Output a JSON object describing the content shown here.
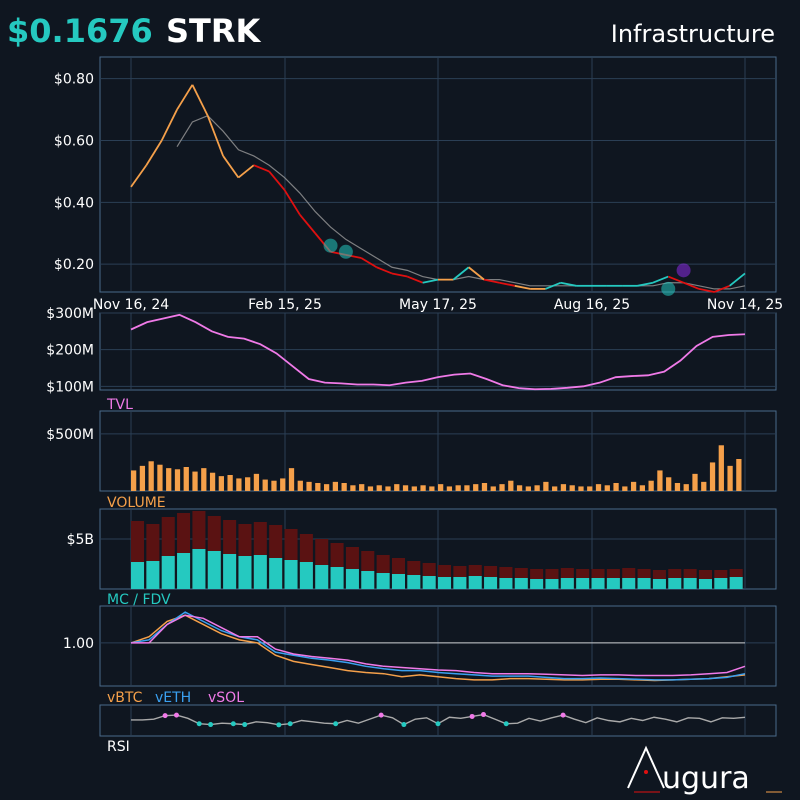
{
  "header": {
    "price": "$0.1676",
    "ticker": "STRK",
    "category": "Infrastructure"
  },
  "colors": {
    "background": "#0f1620",
    "panel_border": "#4a6a8a",
    "grid": "#2b3f55",
    "teal": "#25c9c0",
    "orange": "#f5a04a",
    "red": "#e01010",
    "pink": "#f07ae8",
    "blue": "#3aa0f0",
    "dark_red": "#5a1212",
    "gray": "#aaaaaa"
  },
  "chart_data": [
    {
      "type": "line",
      "panel": "price",
      "x_ticks": [
        "Nov 16, 24",
        "Feb 15, 25",
        "May 17, 25",
        "Aug 16, 25",
        "Nov 14, 25"
      ],
      "y_ticks": [
        "$0.80",
        "$0.60",
        "$0.40",
        "$0.20"
      ],
      "ylim": [
        0.11,
        0.87
      ],
      "series": [
        {
          "role": "price",
          "values": [
            0.45,
            0.52,
            0.6,
            0.7,
            0.78,
            0.68,
            0.55,
            0.48,
            0.52,
            0.5,
            0.44,
            0.36,
            0.3,
            0.24,
            0.23,
            0.22,
            0.19,
            0.17,
            0.16,
            0.14,
            0.15,
            0.15,
            0.19,
            0.15,
            0.14,
            0.13,
            0.12,
            0.12,
            0.14,
            0.13,
            0.13,
            0.13,
            0.13,
            0.13,
            0.14,
            0.16,
            0.14,
            0.12,
            0.11,
            0.13,
            0.17
          ],
          "segment_colors": [
            "orange",
            "orange",
            "orange",
            "orange",
            "orange",
            "orange",
            "orange",
            "orange",
            "orange",
            "red",
            "red",
            "red",
            "red",
            "red",
            "red",
            "red",
            "red",
            "red",
            "red",
            "red",
            "teal",
            "orange",
            "teal",
            "orange",
            "red",
            "red",
            "orange",
            "orange",
            "teal",
            "teal",
            "teal",
            "teal",
            "teal",
            "teal",
            "teal",
            "teal",
            "red",
            "red",
            "red",
            "red",
            "teal"
          ]
        },
        {
          "role": "moving-average",
          "values": [
            null,
            null,
            null,
            0.58,
            0.66,
            0.68,
            0.63,
            0.57,
            0.55,
            0.52,
            0.48,
            0.43,
            0.37,
            0.32,
            0.28,
            0.25,
            0.22,
            0.19,
            0.18,
            0.16,
            0.15,
            0.15,
            0.16,
            0.15,
            0.15,
            0.14,
            0.13,
            0.13,
            0.13,
            0.13,
            0.13,
            0.13,
            0.13,
            0.13,
            0.13,
            0.14,
            0.14,
            0.13,
            0.12,
            0.12,
            0.13
          ]
        }
      ],
      "markers": [
        {
          "index": 13,
          "value": 0.26,
          "color": "teal"
        },
        {
          "index": 14,
          "value": 0.24,
          "color": "teal"
        },
        {
          "index": 36,
          "value": 0.18,
          "color": "purple"
        },
        {
          "index": 35,
          "value": 0.12,
          "color": "teal"
        }
      ]
    },
    {
      "type": "line",
      "panel": "tvl",
      "label": "TVL",
      "y_ticks": [
        "$300M",
        "$200M",
        "$100M"
      ],
      "ylim": [
        90,
        300
      ],
      "values": [
        255,
        275,
        285,
        295,
        275,
        250,
        235,
        230,
        215,
        190,
        155,
        120,
        110,
        108,
        105,
        105,
        103,
        110,
        115,
        125,
        132,
        135,
        120,
        103,
        95,
        92,
        93,
        96,
        100,
        110,
        125,
        128,
        130,
        140,
        170,
        210,
        235,
        240,
        242
      ]
    },
    {
      "type": "bar",
      "panel": "volume",
      "label": "VOLUME",
      "y_ticks": [
        "$500M"
      ],
      "ylim": [
        0,
        700
      ],
      "values": [
        180,
        220,
        260,
        230,
        200,
        190,
        210,
        170,
        200,
        160,
        130,
        140,
        110,
        120,
        150,
        100,
        90,
        110,
        200,
        90,
        80,
        70,
        60,
        80,
        70,
        50,
        60,
        40,
        50,
        40,
        60,
        50,
        40,
        50,
        40,
        60,
        40,
        50,
        50,
        60,
        70,
        40,
        60,
        90,
        50,
        40,
        50,
        80,
        40,
        60,
        50,
        40,
        40,
        60,
        50,
        70,
        40,
        80,
        50,
        90,
        180,
        120,
        70,
        60,
        150,
        80,
        250,
        400,
        220,
        280
      ]
    },
    {
      "type": "bar",
      "panel": "mc-fdv",
      "label": "MC / FDV",
      "y_ticks": [
        "$5B"
      ],
      "ylim": [
        0,
        8
      ],
      "series": [
        {
          "role": "fdv",
          "values": [
            6.8,
            6.5,
            7.2,
            7.6,
            7.8,
            7.3,
            6.9,
            6.5,
            6.7,
            6.4,
            6.0,
            5.5,
            5.0,
            4.6,
            4.2,
            3.8,
            3.4,
            3.1,
            2.8,
            2.6,
            2.4,
            2.3,
            2.4,
            2.3,
            2.2,
            2.1,
            2.0,
            2.0,
            2.1,
            2.0,
            2.0,
            2.0,
            2.1,
            2.0,
            1.9,
            2.0,
            2.0,
            1.9,
            1.9,
            2.0
          ]
        },
        {
          "role": "mc",
          "values": [
            2.7,
            2.8,
            3.3,
            3.6,
            4.0,
            3.8,
            3.5,
            3.3,
            3.4,
            3.1,
            2.9,
            2.7,
            2.4,
            2.2,
            2.0,
            1.8,
            1.6,
            1.5,
            1.4,
            1.3,
            1.2,
            1.2,
            1.3,
            1.2,
            1.1,
            1.1,
            1.0,
            1.0,
            1.1,
            1.1,
            1.1,
            1.1,
            1.1,
            1.1,
            1.0,
            1.1,
            1.1,
            1.0,
            1.1,
            1.2
          ]
        }
      ]
    },
    {
      "type": "line",
      "panel": "relative",
      "y_ticks": [
        "1.00"
      ],
      "ylim": [
        0.3,
        1.6
      ],
      "legend": [
        "vBTC",
        "vETH",
        "vSOL"
      ],
      "series": [
        {
          "name": "vBTC",
          "values": [
            1.0,
            1.1,
            1.35,
            1.45,
            1.3,
            1.15,
            1.05,
            1.0,
            0.8,
            0.7,
            0.65,
            0.6,
            0.55,
            0.52,
            0.5,
            0.45,
            0.48,
            0.45,
            0.42,
            0.4,
            0.4,
            0.42,
            0.42,
            0.41,
            0.4,
            0.4,
            0.41,
            0.41,
            0.4,
            0.39,
            0.4,
            0.41,
            0.42,
            0.45,
            0.48
          ]
        },
        {
          "name": "vETH",
          "values": [
            1.0,
            1.05,
            1.3,
            1.5,
            1.35,
            1.2,
            1.1,
            1.05,
            0.85,
            0.8,
            0.75,
            0.72,
            0.68,
            0.62,
            0.58,
            0.55,
            0.55,
            0.52,
            0.5,
            0.48,
            0.46,
            0.46,
            0.46,
            0.44,
            0.42,
            0.42,
            0.43,
            0.42,
            0.41,
            0.4,
            0.4,
            0.41,
            0.42,
            0.44,
            0.5
          ]
        },
        {
          "name": "vSOL",
          "values": [
            1.0,
            1.0,
            1.3,
            1.45,
            1.4,
            1.25,
            1.1,
            1.1,
            0.9,
            0.82,
            0.78,
            0.75,
            0.72,
            0.66,
            0.62,
            0.6,
            0.58,
            0.56,
            0.55,
            0.52,
            0.5,
            0.5,
            0.5,
            0.49,
            0.48,
            0.47,
            0.48,
            0.48,
            0.47,
            0.47,
            0.47,
            0.48,
            0.5,
            0.52,
            0.62
          ]
        }
      ]
    },
    {
      "type": "line",
      "panel": "rsi",
      "label": "RSI",
      "ylim": [
        0,
        100
      ],
      "values": [
        52,
        52,
        55,
        68,
        70,
        58,
        38,
        35,
        40,
        38,
        35,
        45,
        42,
        34,
        38,
        50,
        45,
        40,
        38,
        50,
        40,
        55,
        70,
        60,
        35,
        55,
        60,
        38,
        62,
        58,
        65,
        72,
        55,
        38,
        40,
        58,
        48,
        60,
        70,
        55,
        42,
        60,
        50,
        45,
        58,
        50,
        62,
        55,
        45,
        60,
        58,
        45,
        60,
        58,
        62
      ]
    }
  ],
  "brand": {
    "name": "Augura"
  }
}
